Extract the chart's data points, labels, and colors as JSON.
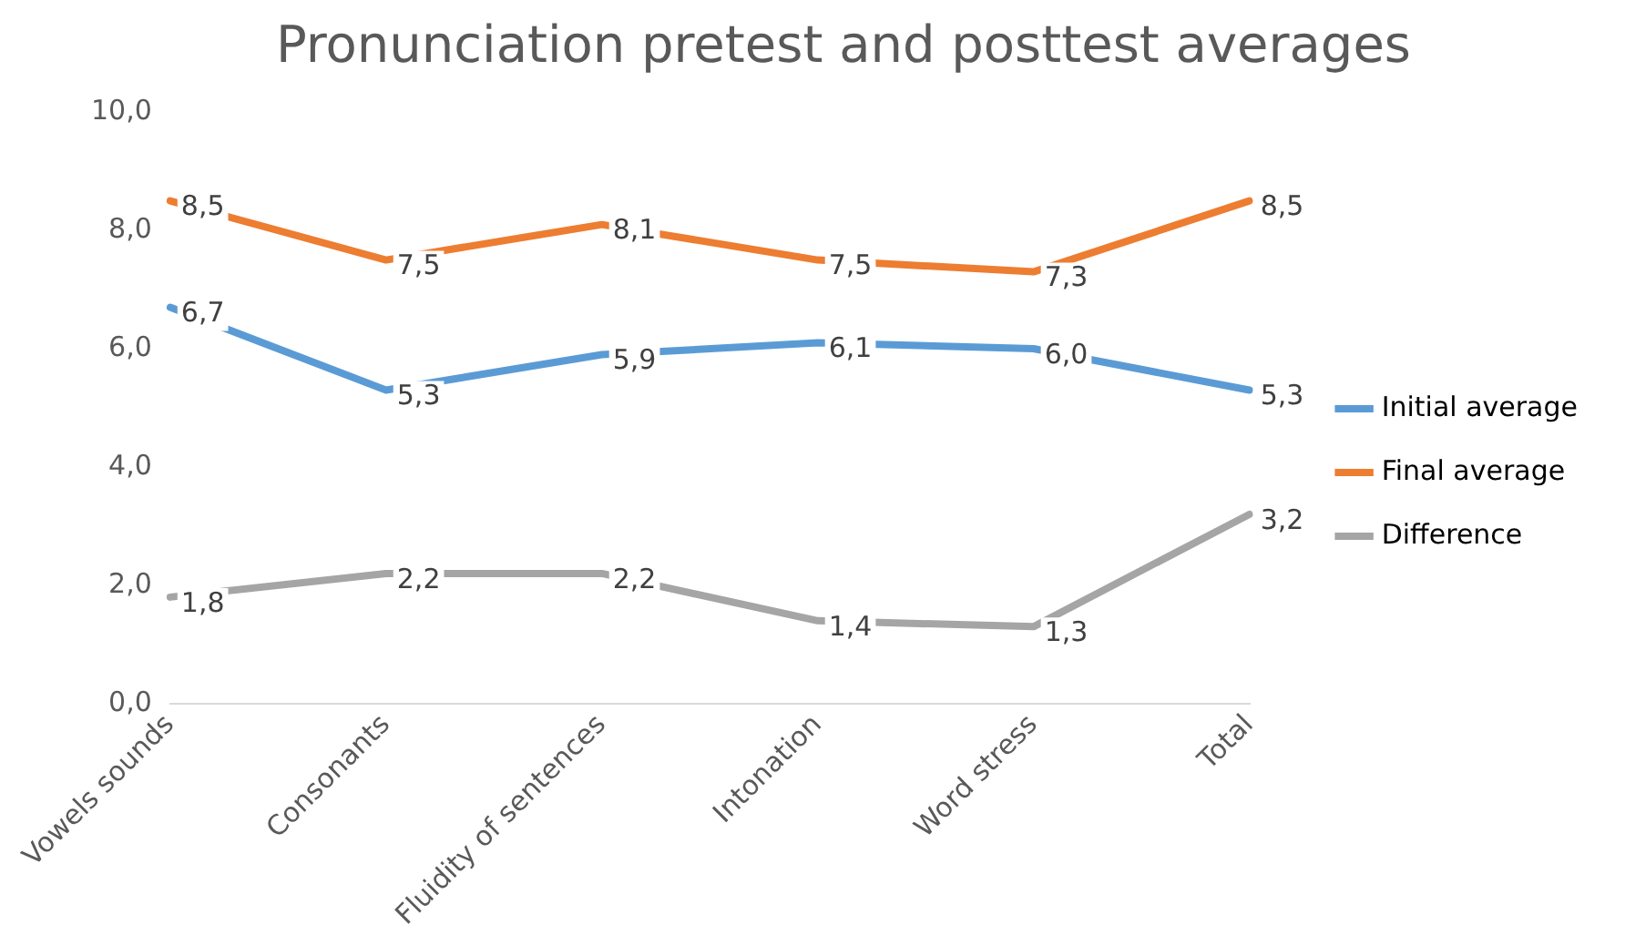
{
  "chart_data": {
    "type": "line",
    "title": "Pronunciation pretest and posttest averages",
    "categories": [
      "Vowels sounds",
      "Consonants",
      "Fluidity of sentences",
      "Intonation",
      "Word stress",
      "Total"
    ],
    "series": [
      {
        "name": "Initial average",
        "color": "#5b9bd5",
        "values": [
          6.7,
          5.3,
          5.9,
          6.1,
          6.0,
          5.3
        ],
        "value_labels": [
          "6,7",
          "5,3",
          "5,9",
          "6,1",
          "6,0",
          "5,3"
        ]
      },
      {
        "name": "Final average",
        "color": "#ed7d31",
        "values": [
          8.5,
          7.5,
          8.1,
          7.5,
          7.3,
          8.5
        ],
        "value_labels": [
          "8,5",
          "7,5",
          "8,1",
          "7,5",
          "7,3",
          "8,5"
        ]
      },
      {
        "name": "Difference",
        "color": "#a5a5a5",
        "values": [
          1.8,
          2.2,
          2.2,
          1.4,
          1.3,
          3.2
        ],
        "value_labels": [
          "1,8",
          "2,2",
          "2,2",
          "1,4",
          "1,3",
          "3,2"
        ]
      }
    ],
    "ylim": [
      0,
      10
    ],
    "yticks": [
      {
        "value": 0,
        "label": "0,0"
      },
      {
        "value": 2,
        "label": "2,0"
      },
      {
        "value": 4,
        "label": "4,0"
      },
      {
        "value": 6,
        "label": "6,0"
      },
      {
        "value": 8,
        "label": "8,0"
      },
      {
        "value": 10,
        "label": "10,0"
      }
    ],
    "grid": false,
    "legend": "right",
    "marker": "none",
    "line_style": "solid"
  }
}
